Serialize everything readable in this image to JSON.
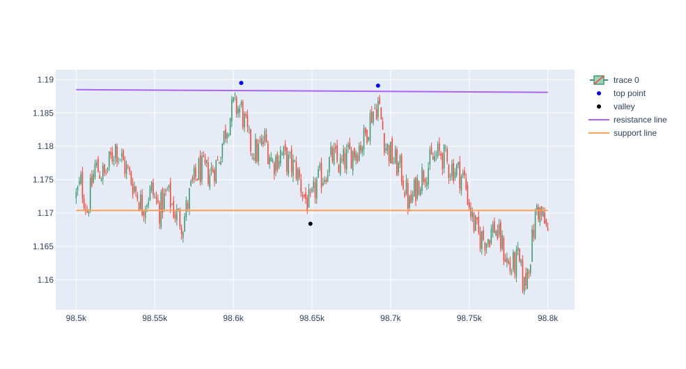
{
  "chart_data": {
    "type": "candlestick",
    "title": "",
    "xlabel": "",
    "ylabel": "",
    "xlim": [
      98487,
      98817
    ],
    "ylim": [
      1.1555,
      1.1915
    ],
    "x_ticks": [
      {
        "value": 98500,
        "label": "98.5k"
      },
      {
        "value": 98550,
        "label": "98.55k"
      },
      {
        "value": 98600,
        "label": "98.6k"
      },
      {
        "value": 98650,
        "label": "98.65k"
      },
      {
        "value": 98700,
        "label": "98.7k"
      },
      {
        "value": 98750,
        "label": "98.75k"
      },
      {
        "value": 98800,
        "label": "98.8k"
      }
    ],
    "y_ticks": [
      {
        "value": 1.16,
        "label": "1.16"
      },
      {
        "value": 1.165,
        "label": "1.165"
      },
      {
        "value": 1.17,
        "label": "1.17"
      },
      {
        "value": 1.175,
        "label": "1.175"
      },
      {
        "value": 1.18,
        "label": "1.18"
      },
      {
        "value": 1.185,
        "label": "1.185"
      },
      {
        "value": 1.19,
        "label": "1.19"
      }
    ],
    "grid": true,
    "legend_position": "top-right",
    "colors": {
      "increasing": "#3D9970",
      "decreasing": "#FF4136",
      "top_point": "#0000FF",
      "valley": "#000000",
      "resistance": "#AB63FA",
      "support": "#FFA15A",
      "plot_bg": "#E5ECF6",
      "grid": "#FFFFFF"
    },
    "candles": {
      "x_start": 98500,
      "x_step": 1,
      "close_anchors": [
        [
          98500,
          1.1725
        ],
        [
          98503,
          1.1745
        ],
        [
          98507,
          1.1705
        ],
        [
          98512,
          1.177
        ],
        [
          98518,
          1.1755
        ],
        [
          98525,
          1.18
        ],
        [
          98530,
          1.1775
        ],
        [
          98536,
          1.1745
        ],
        [
          98542,
          1.171
        ],
        [
          98548,
          1.1735
        ],
        [
          98553,
          1.1705
        ],
        [
          98558,
          1.173
        ],
        [
          98563,
          1.17
        ],
        [
          98568,
          1.1685
        ],
        [
          98573,
          1.1735
        ],
        [
          98578,
          1.1765
        ],
        [
          98585,
          1.176
        ],
        [
          98590,
          1.1775
        ],
        [
          98595,
          1.1825
        ],
        [
          98600,
          1.186
        ],
        [
          98605,
          1.1855
        ],
        [
          98610,
          1.1805
        ],
        [
          98615,
          1.179
        ],
        [
          98620,
          1.181
        ],
        [
          98625,
          1.1775
        ],
        [
          98630,
          1.179
        ],
        [
          98635,
          1.1775
        ],
        [
          98640,
          1.1765
        ],
        [
          98645,
          1.1725
        ],
        [
          98649,
          1.171
        ],
        [
          98653,
          1.1745
        ],
        [
          98658,
          1.176
        ],
        [
          98663,
          1.1785
        ],
        [
          98668,
          1.177
        ],
        [
          98673,
          1.1785
        ],
        [
          98678,
          1.1795
        ],
        [
          98683,
          1.181
        ],
        [
          98688,
          1.185
        ],
        [
          98692,
          1.1865
        ],
        [
          98697,
          1.18
        ],
        [
          98702,
          1.178
        ],
        [
          98707,
          1.176
        ],
        [
          98712,
          1.171
        ],
        [
          98717,
          1.1745
        ],
        [
          98722,
          1.1765
        ],
        [
          98727,
          1.178
        ],
        [
          98732,
          1.179
        ],
        [
          98737,
          1.177
        ],
        [
          98742,
          1.1765
        ],
        [
          98747,
          1.175
        ],
        [
          98752,
          1.169
        ],
        [
          98756,
          1.1665
        ],
        [
          98761,
          1.166
        ],
        [
          98766,
          1.168
        ],
        [
          98771,
          1.165
        ],
        [
          98776,
          1.1615
        ],
        [
          98781,
          1.163
        ],
        [
          98785,
          1.159
        ],
        [
          98789,
          1.164
        ],
        [
          98793,
          1.171
        ],
        [
          98797,
          1.169
        ],
        [
          98800,
          1.167
        ]
      ]
    },
    "top_points": [
      {
        "x": 98605,
        "y": 1.1895
      },
      {
        "x": 98692,
        "y": 1.1891
      }
    ],
    "valleys": [
      {
        "x": 98649,
        "y": 1.1684
      }
    ],
    "resistance_line": {
      "x": [
        98500,
        98800
      ],
      "y": [
        1.1885,
        1.1881
      ]
    },
    "support_line": {
      "x": [
        98500,
        98800
      ],
      "y": [
        1.1704,
        1.1704
      ]
    },
    "legend": [
      {
        "name": "trace 0",
        "kind": "candle"
      },
      {
        "name": "top point",
        "kind": "marker",
        "color": "#0000FF"
      },
      {
        "name": "valley",
        "kind": "marker",
        "color": "#000000"
      },
      {
        "name": "resistance line",
        "kind": "line",
        "color": "#AB63FA"
      },
      {
        "name": "support line",
        "kind": "line",
        "color": "#FFA15A"
      }
    ]
  }
}
